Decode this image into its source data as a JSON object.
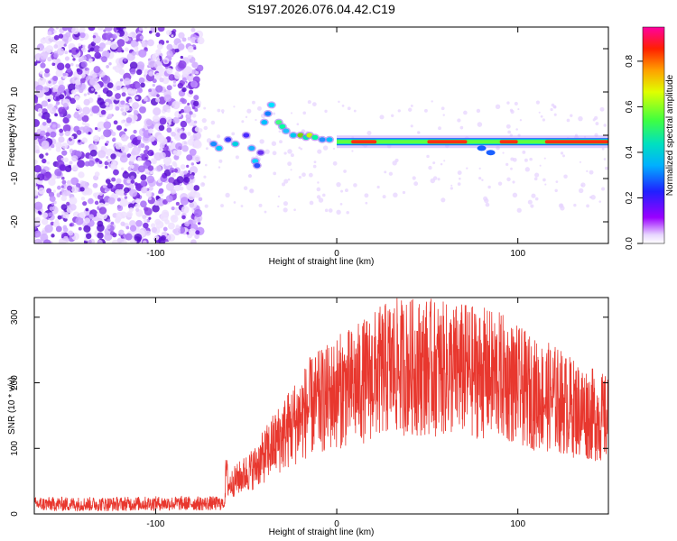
{
  "title": "S197.2026.076.04.42.C19",
  "chart_data": [
    {
      "type": "heatmap",
      "xlabel": "Height of straight line (km)",
      "ylabel": "Frequency (Hz)",
      "xlim": [
        -167,
        150
      ],
      "ylim": [
        -25,
        25
      ],
      "xticks": [
        -100,
        0,
        100
      ],
      "yticks": [
        -20,
        -10,
        0,
        10,
        20
      ],
      "colorbar": {
        "label": "Normalized spectral amplitude",
        "range": [
          0,
          0.95
        ],
        "ticks": [
          0.0,
          0.2,
          0.4,
          0.6,
          0.8
        ],
        "tick_labels": [
          "0.0",
          "0.2",
          "0.4",
          "0.6",
          "0.8"
        ]
      },
      "regions": [
        {
          "name": "diffuse-noise",
          "x_range": [
            -167,
            -75
          ],
          "freq_range": [
            -25,
            25
          ],
          "amplitude": 0.15
        },
        {
          "name": "transition-blobs",
          "x_range": [
            -75,
            -25
          ],
          "freq_range": [
            -10,
            10
          ],
          "amplitude": 0.3
        },
        {
          "name": "carrier-line",
          "x_range": [
            0,
            150
          ],
          "freq": -1.5,
          "amplitude": 0.9
        }
      ]
    },
    {
      "type": "line",
      "xlabel": "Height of straight line (km)",
      "ylabel": "SNR (10 * v/v)",
      "xlim": [
        -167,
        150
      ],
      "ylim": [
        0,
        330
      ],
      "xticks": [
        -100,
        0,
        100
      ],
      "yticks": [
        0,
        100,
        200,
        300
      ],
      "series": [
        {
          "name": "SNR",
          "color": "#e8372e",
          "x": [
            -167,
            -150,
            -125,
            -100,
            -75,
            -62,
            -61,
            -60,
            -55,
            -45,
            -35,
            -25,
            -15,
            -5,
            0,
            10,
            20,
            30,
            40,
            50,
            60,
            70,
            80,
            90,
            100,
            110,
            120,
            130,
            140,
            150
          ],
          "y": [
            15,
            15,
            15,
            16,
            16,
            16,
            75,
            45,
            55,
            75,
            110,
            140,
            170,
            185,
            195,
            205,
            220,
            235,
            235,
            235,
            230,
            230,
            225,
            220,
            205,
            190,
            185,
            170,
            160,
            150
          ]
        }
      ]
    }
  ],
  "colors": {
    "line": "#e8372e",
    "heatmap_base": "#8a2be2"
  }
}
